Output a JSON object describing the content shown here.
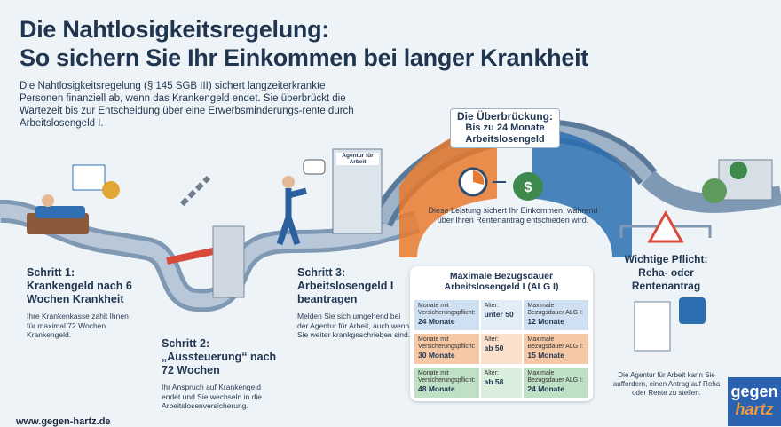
{
  "header": {
    "title_line1": "Die Nahtlosigkeitsregelung:",
    "title_line2": "So sichern Sie Ihr Einkommen bei langer Krankheit",
    "intro": "Die Nahtlosigkeitsregelung (§ 145 SGB III) sichert langzeiterkrankte Personen finanziell ab, wenn das Krankengeld endet. Sie überbrückt die Wartezeit bis zur Entscheidung über eine Erwerbsminderungs-rente durch Arbeitslosengeld I."
  },
  "steps": [
    {
      "label": "Schritt 1:",
      "title": "Krankengeld nach 6 Wochen Krankheit",
      "text": "Ihre Krankenkasse zahlt Ihnen für maximal 72 Wochen Krankengeld."
    },
    {
      "label": "Schritt 2:",
      "title": "„Aussteuerung“ nach 72 Wochen",
      "text": "Ihr Anspruch auf Krankengeld endet und Sie wechseln in die Arbeitslosenversicherung."
    },
    {
      "label": "Schritt 3:",
      "title": "Arbeitslosengeld I beantragen",
      "text": "Melden Sie sich umgehend bei der Agentur für Arbeit, auch wenn Sie weiter krankgeschrieben sind."
    }
  ],
  "agency_sign": "Agentur für Arbeit",
  "bridge": {
    "label": "Die Überbrückung:",
    "title": "Bis zu 24 Monate Arbeitslosengeld",
    "text": "Diese Leistung sichert Ihr Einkommen, während über Ihren Rentenantrag entschieden wird."
  },
  "table": {
    "title": "Maximale Bezugsdauer Arbeitslosengeld I (ALG I)",
    "rows": [
      [
        {
          "label": "Monate mit Versicherungspflicht:",
          "value": "24 Monate"
        },
        {
          "label": "Alter:",
          "value": "unter 50"
        },
        {
          "label": "Maximale Bezugsdauer ALG I:",
          "value": "12 Monate"
        }
      ],
      [
        {
          "label": "Monate mit Versicherungspflicht:",
          "value": "30 Monate"
        },
        {
          "label": "Alter:",
          "value": "ab 50"
        },
        {
          "label": "Maximale Bezugsdauer ALG I:",
          "value": "15 Monate"
        }
      ],
      [
        {
          "label": "Monate mit Versicherungspflicht:",
          "value": "48 Monate"
        },
        {
          "label": "Alter:",
          "value": "ab 58"
        },
        {
          "label": "Maximale Bezugsdauer ALG I:",
          "value": "24 Monate"
        }
      ]
    ]
  },
  "duty": {
    "label": "Wichtige Pflicht:",
    "title": "Reha- oder Rentenantrag",
    "text": "Die Agentur für Arbeit kann Sie auffordern, einen Antrag auf Reha oder Rente zu stellen."
  },
  "footer": {
    "url": "www.gegen-hartz.de",
    "logo_top": "gegen",
    "logo_bottom": "hartz"
  }
}
